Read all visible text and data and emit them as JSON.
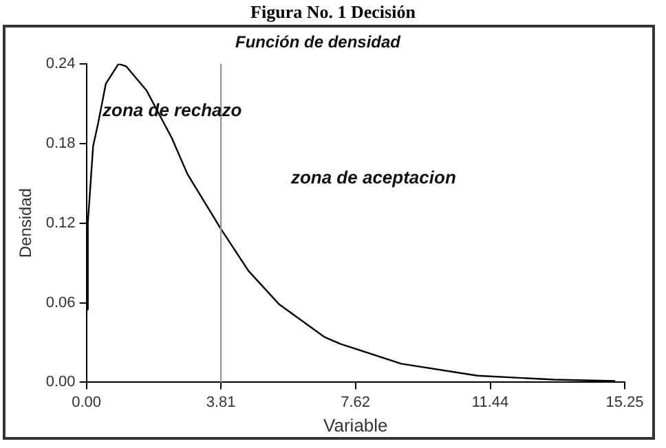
{
  "chart_data": {
    "type": "line",
    "title": "Figura No. 1 Decisión",
    "subtitle": "Función de densidad",
    "xlabel": "Variable",
    "ylabel": "Densidad",
    "xlim": [
      0,
      15.25
    ],
    "xticks": [
      {
        "value": 0,
        "label": "0.00"
      },
      3.81,
      7.62,
      11.44,
      15.25
    ],
    "ylim": [
      0,
      0.24
    ],
    "yticks": [
      {
        "value": 0,
        "label": "0.00"
      },
      0.06,
      0.12,
      0.18,
      0.24
    ],
    "grid": false,
    "legend": false,
    "marker": "none",
    "line_style": "solid",
    "series": [
      {
        "color": "#000000",
        "x": [
          0,
          0.01,
          0.04,
          0.19,
          0.33,
          0.55,
          0.91,
          1.13,
          1.7,
          2.42,
          2.86,
          3.8,
          4.59,
          5.45,
          6.75,
          7.19,
          8.92,
          11.08,
          13.25,
          14.98
        ],
        "values": [
          0.05,
          0.055,
          0.12,
          0.178,
          0.195,
          0.225,
          0.24,
          0.238,
          0.22,
          0.184,
          0.157,
          0.116,
          0.084,
          0.059,
          0.034,
          0.029,
          0.014,
          0.005,
          0.002,
          0.001
        ]
      }
    ],
    "ref_lines": [
      {
        "axis": "x",
        "value": 3.81,
        "color": "#999999"
      }
    ],
    "annotations": [
      "zona de rechazo",
      "zona de aceptacion"
    ]
  }
}
